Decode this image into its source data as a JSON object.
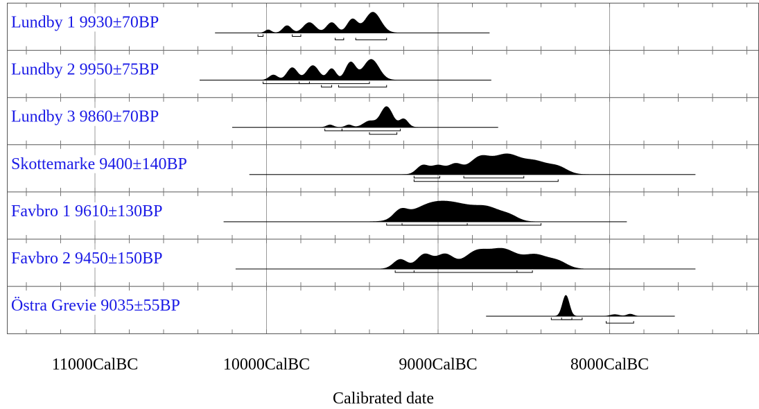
{
  "chart_data": {
    "type": "area",
    "xlabel": "Calibrated date",
    "x_tick_labels": [
      "11000CalBC",
      "10000CalBC",
      "9000CalBC",
      "8000CalBC"
    ],
    "x_ticks": [
      11000,
      10000,
      9000,
      8000
    ],
    "x_unit": "years CalBC",
    "xlim": [
      11400,
      7200
    ],
    "grid": true,
    "series": [
      {
        "name": "Lundby 1 9930±70BP",
        "line_range": [
          10300,
          8700
        ],
        "peaks": [
          [
            9990,
            0.15,
            18
          ],
          [
            9880,
            0.35,
            25
          ],
          [
            9750,
            0.5,
            35
          ],
          [
            9620,
            0.5,
            30
          ],
          [
            9500,
            0.65,
            30
          ],
          [
            9380,
            1.0,
            45
          ]
        ],
        "ranges": [
          [
            9850,
            9800
          ],
          [
            10050,
            10020
          ],
          [
            9600,
            9550
          ],
          [
            9480,
            9300
          ]
        ]
      },
      {
        "name": "Lundby 2 9950±75BP",
        "line_range": [
          10390,
          8690
        ],
        "peaks": [
          [
            9960,
            0.25,
            25
          ],
          [
            9850,
            0.6,
            30
          ],
          [
            9730,
            0.7,
            35
          ],
          [
            9620,
            0.55,
            25
          ],
          [
            9510,
            0.85,
            30
          ],
          [
            9390,
            1.0,
            45
          ]
        ],
        "ranges": [
          [
            10020,
            9400
          ],
          [
            9810,
            9750
          ],
          [
            9680,
            9620
          ],
          [
            9580,
            9300
          ]
        ]
      },
      {
        "name": "Lundby 3 9860±70BP",
        "line_range": [
          10200,
          8650
        ],
        "peaks": [
          [
            9630,
            0.12,
            20
          ],
          [
            9520,
            0.12,
            20
          ],
          [
            9400,
            0.3,
            35
          ],
          [
            9300,
            1.0,
            35
          ],
          [
            9200,
            0.4,
            25
          ]
        ],
        "ranges": [
          [
            9660,
            9560
          ],
          [
            9560,
            9220
          ],
          [
            9400,
            9240
          ]
        ]
      },
      {
        "name": "Skottemarke 9400±140BP",
        "line_range": [
          10100,
          7500
        ],
        "peaks": [
          [
            9090,
            0.45,
            35
          ],
          [
            9000,
            0.45,
            40
          ],
          [
            8900,
            0.5,
            40
          ],
          [
            8760,
            0.8,
            60
          ],
          [
            8600,
            1.0,
            80
          ],
          [
            8430,
            0.6,
            70
          ],
          [
            8300,
            0.35,
            55
          ]
        ],
        "ranges": [
          [
            9140,
            8990
          ],
          [
            8850,
            8500
          ],
          [
            9140,
            8300
          ]
        ]
      },
      {
        "name": "Favbro 1 9610±130BP",
        "line_range": [
          10250,
          7900
        ],
        "peaks": [
          [
            9220,
            0.55,
            40
          ],
          [
            9050,
            1.0,
            110
          ],
          [
            8870,
            0.9,
            110
          ],
          [
            8700,
            0.7,
            75
          ],
          [
            8580,
            0.3,
            50
          ]
        ],
        "ranges": [
          [
            9300,
            8400
          ],
          [
            9210,
            8830
          ]
        ]
      },
      {
        "name": "Favbro 2 9450±150BP",
        "line_range": [
          10180,
          7500
        ],
        "peaks": [
          [
            9220,
            0.5,
            40
          ],
          [
            9080,
            0.75,
            45
          ],
          [
            8960,
            0.75,
            50
          ],
          [
            8780,
            0.85,
            70
          ],
          [
            8620,
            1.0,
            80
          ],
          [
            8430,
            0.7,
            70
          ],
          [
            8300,
            0.35,
            55
          ]
        ],
        "ranges": [
          [
            9250,
            8450
          ],
          [
            9140,
            8540
          ]
        ]
      },
      {
        "name": "Östra Grevie 9035±55BP",
        "line_range": [
          8720,
          7620
        ],
        "peaks": [
          [
            8255,
            1.0,
            20
          ],
          [
            7970,
            0.08,
            25
          ],
          [
            7880,
            0.1,
            20
          ]
        ],
        "ranges": [
          [
            8340,
            8160
          ],
          [
            8280,
            8220
          ],
          [
            8020,
            7860
          ]
        ]
      }
    ]
  }
}
